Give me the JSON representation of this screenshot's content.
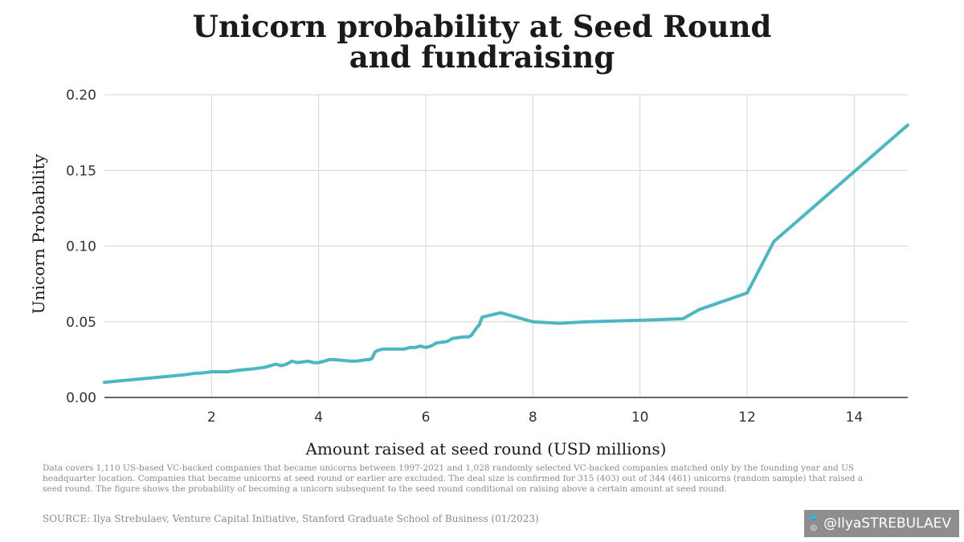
{
  "title_line1": "Unicorn probability at Seed Round",
  "title_line2": "and fundraising",
  "chart_data": {
    "type": "line",
    "ylabel": "Unicorn Probability",
    "xlabel": "Amount raised at seed round (USD millions)",
    "xlim": [
      0,
      15
    ],
    "ylim": [
      0,
      0.2
    ],
    "x_ticks": [
      2,
      4,
      6,
      8,
      10,
      12,
      14
    ],
    "y_ticks": [
      "0.00",
      "0.05",
      "0.10",
      "0.15",
      "0.20"
    ],
    "grid": true,
    "color": "#4bb7c2",
    "series": [
      {
        "x": [
          0.0,
          0.3,
          0.6,
          0.9,
          1.2,
          1.5,
          1.7,
          1.8,
          2.0,
          2.3,
          2.5,
          2.8,
          3.0,
          3.1,
          3.2,
          3.3,
          3.4,
          3.5,
          3.6,
          3.8,
          3.9,
          4.0,
          4.1,
          4.2,
          4.3,
          4.6,
          4.7,
          4.9,
          4.95,
          5.0,
          5.05,
          5.1,
          5.2,
          5.4,
          5.5,
          5.6,
          5.7,
          5.8,
          5.9,
          6.0,
          6.1,
          6.2,
          6.4,
          6.5,
          6.7,
          6.8,
          6.85,
          6.95,
          7.0,
          7.05,
          7.4,
          8.0,
          8.5,
          9.0,
          10.0,
          10.8,
          11.1,
          12.0,
          12.5,
          15.0
        ],
        "y": [
          0.01,
          0.011,
          0.012,
          0.013,
          0.014,
          0.015,
          0.016,
          0.016,
          0.017,
          0.017,
          0.018,
          0.019,
          0.02,
          0.021,
          0.022,
          0.021,
          0.022,
          0.024,
          0.023,
          0.024,
          0.023,
          0.023,
          0.024,
          0.025,
          0.025,
          0.024,
          0.024,
          0.025,
          0.025,
          0.026,
          0.03,
          0.031,
          0.032,
          0.032,
          0.032,
          0.032,
          0.033,
          0.033,
          0.034,
          0.033,
          0.034,
          0.036,
          0.037,
          0.039,
          0.04,
          0.04,
          0.041,
          0.046,
          0.048,
          0.053,
          0.056,
          0.05,
          0.049,
          0.05,
          0.051,
          0.052,
          0.058,
          0.069,
          0.103,
          0.18
        ]
      }
    ]
  },
  "footnote": "Data covers 1,110 US-based VC-backed companies that became unicorns between 1997-2021 and 1,028 randomly selected VC-backed companies matched only by the founding year and US headquarter location. Companies that became unicorns at seed round or earlier are excluded. The deal size is confirmed for 315 (403) out of 344 (461) unicorns (random sample) that raised a seed round. The figure shows the probability of becoming a unicorn subsequent to the seed round conditional on raising above a certain amount at seed round.",
  "source": "SOURCE: Ilya Strebulaev, Venture Capital Initiative, Stanford Graduate School of Business (01/2023)",
  "handle": {
    "text": "@IlyaSTREBULAEV",
    "icons": [
      "twitter-icon",
      "instagram-icon"
    ]
  }
}
